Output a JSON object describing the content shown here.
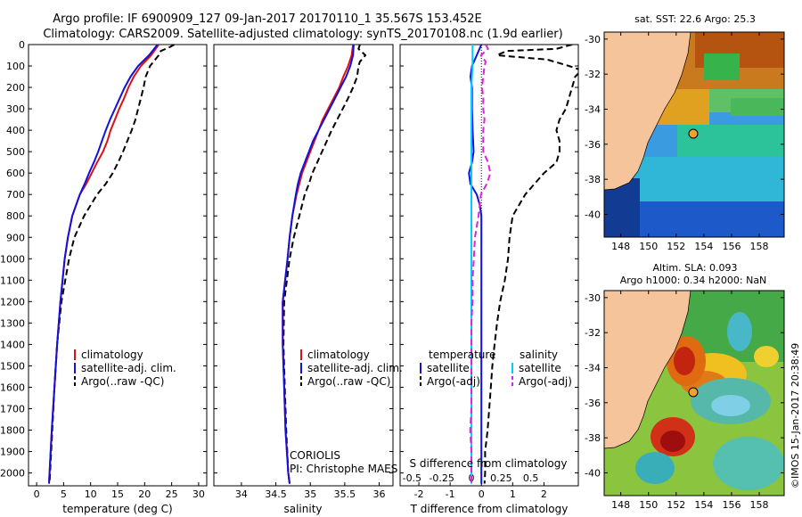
{
  "header": {
    "line1": "Argo profile: IF 6900909_127 09-Jan-2017 20170110_1 35.567S 153.452E",
    "line2": "Climatology: CARS2009. Satellite-adjusted climatology: synTS_20170108.nc (1.9d earlier)"
  },
  "depth_ticks": [
    "0",
    "100",
    "200",
    "300",
    "400",
    "500",
    "600",
    "700",
    "800",
    "900",
    "1000",
    "1100",
    "1200",
    "1300",
    "1400",
    "1500",
    "1600",
    "1700",
    "1800",
    "1900",
    "2000"
  ],
  "chart_data": [
    {
      "type": "line",
      "id": "temperature",
      "xlabel": "temperature (deg C)",
      "ylabel": "",
      "xlim": [
        -1.5,
        31.5
      ],
      "ylim": [
        2060,
        0
      ],
      "xticks": [
        "0",
        "5",
        "10",
        "15",
        "20",
        "25",
        "30"
      ],
      "legend": [
        "climatology",
        "satellite-adj. clim.",
        "Argo(..raw -QC)"
      ],
      "series": [
        {
          "name": "climatology",
          "color": "#dd1111",
          "dash": "solid",
          "depth": [
            0,
            50,
            100,
            150,
            200,
            250,
            300,
            350,
            400,
            450,
            500,
            550,
            600,
            650,
            700,
            800,
            900,
            1000,
            1200,
            1400,
            1600,
            1800,
            2000,
            2050
          ],
          "values": [
            22.6,
            21.2,
            19.3,
            18.0,
            17.0,
            16.2,
            15.3,
            14.5,
            13.7,
            13.1,
            12.3,
            11.2,
            10.2,
            9.2,
            8.0,
            6.6,
            5.8,
            5.2,
            4.4,
            3.8,
            3.3,
            2.8,
            2.4,
            2.3
          ]
        },
        {
          "name": "satellite-adj. clim.",
          "color": "#1111dd",
          "dash": "solid",
          "depth": [
            0,
            50,
            100,
            150,
            200,
            250,
            300,
            350,
            400,
            450,
            500,
            550,
            600,
            650,
            700,
            800,
            900,
            1000,
            1200,
            1400,
            1600,
            1800,
            2000,
            2050
          ],
          "values": [
            22.4,
            20.8,
            18.8,
            17.4,
            16.3,
            15.4,
            14.5,
            13.6,
            12.8,
            12.1,
            11.4,
            10.6,
            9.7,
            8.9,
            8.0,
            6.6,
            5.8,
            5.2,
            4.4,
            3.8,
            3.3,
            2.8,
            2.4,
            2.3
          ]
        },
        {
          "name": "Argo(..raw -QC)",
          "color": "#000000",
          "dash": "dashed",
          "depth": [
            0,
            10,
            30,
            50,
            100,
            150,
            200,
            250,
            300,
            350,
            400,
            450,
            500,
            550,
            600,
            650,
            700,
            800,
            900,
            1000,
            1200,
            1400,
            1600,
            1800,
            2000,
            2050
          ],
          "values": [
            25.5,
            24.8,
            23.0,
            22.6,
            21.0,
            20.2,
            19.8,
            19.3,
            18.8,
            18.3,
            17.6,
            16.8,
            16.0,
            15.1,
            14.1,
            12.8,
            11.2,
            8.8,
            7.0,
            6.0,
            4.6,
            3.8,
            3.3,
            2.9,
            2.5,
            2.4
          ]
        }
      ]
    },
    {
      "type": "line",
      "id": "salinity",
      "xlabel": "salinity",
      "ylabel": "",
      "xlim": [
        33.6,
        36.2
      ],
      "ylim": [
        2060,
        0
      ],
      "xticks": [
        "34",
        "34.5",
        "35",
        "35.5",
        "36"
      ],
      "legend": [
        "climatology",
        "satellite-adj. clim.",
        "Argo(..raw -QC)"
      ],
      "annotation": [
        "CORIOLIS",
        "PI: Christophe MAES"
      ],
      "series": [
        {
          "name": "climatology",
          "color": "#dd1111",
          "dash": "solid",
          "depth": [
            0,
            50,
            100,
            150,
            200,
            250,
            300,
            350,
            400,
            450,
            500,
            550,
            600,
            650,
            700,
            800,
            900,
            1000,
            1200,
            1400,
            1600,
            1800,
            2000,
            2050
          ],
          "values": [
            35.62,
            35.6,
            35.55,
            35.48,
            35.42,
            35.34,
            35.26,
            35.18,
            35.12,
            35.06,
            35.0,
            34.94,
            34.88,
            34.84,
            34.8,
            34.74,
            34.7,
            34.67,
            34.6,
            34.6,
            34.62,
            34.64,
            34.68,
            34.7
          ]
        },
        {
          "name": "satellite-adj. clim.",
          "color": "#1111dd",
          "dash": "solid",
          "depth": [
            0,
            50,
            100,
            150,
            200,
            250,
            300,
            350,
            400,
            450,
            500,
            550,
            600,
            650,
            700,
            800,
            900,
            1000,
            1200,
            1400,
            1600,
            1800,
            2000,
            2050
          ],
          "values": [
            35.63,
            35.62,
            35.58,
            35.52,
            35.44,
            35.36,
            35.28,
            35.2,
            35.12,
            35.04,
            34.98,
            34.92,
            34.86,
            34.82,
            34.79,
            34.74,
            34.7,
            34.67,
            34.6,
            34.6,
            34.62,
            34.64,
            34.68,
            34.7
          ]
        },
        {
          "name": "Argo(..raw -QC)",
          "color": "#000000",
          "dash": "dashed",
          "depth": [
            0,
            20,
            50,
            80,
            100,
            150,
            200,
            250,
            300,
            350,
            400,
            450,
            500,
            550,
            600,
            650,
            700,
            800,
            900,
            1000,
            1200,
            1400,
            1600,
            1800,
            2000,
            2050
          ],
          "values": [
            35.72,
            35.7,
            35.8,
            35.72,
            35.7,
            35.68,
            35.62,
            35.55,
            35.47,
            35.39,
            35.31,
            35.24,
            35.17,
            35.1,
            35.03,
            34.98,
            34.92,
            34.84,
            34.76,
            34.7,
            34.62,
            34.61,
            34.63,
            34.65,
            34.68,
            34.7
          ]
        }
      ]
    },
    {
      "type": "line",
      "id": "difference",
      "xlabel": "T difference from climatology",
      "xlabel2": "S difference from climatology",
      "xlim": [
        -2.6,
        3.1
      ],
      "s_xlim": [
        -0.6,
        0.9
      ],
      "ylim": [
        2060,
        0
      ],
      "xticks": [
        "-2",
        "-1",
        "0",
        "1",
        "2"
      ],
      "s_xticks": [
        "-0.5",
        "-0.25",
        "0",
        "0.25",
        "0.5"
      ],
      "legend_headers": [
        "temperature",
        "salinity"
      ],
      "legend": [
        "satellite",
        "Argo(-adj)",
        "satellite",
        "Argo(-adj)"
      ],
      "series": [
        {
          "name": "temperature satellite",
          "color": "#1111dd",
          "dash": "solid",
          "axis": "T",
          "depth": [
            0,
            50,
            100,
            150,
            200,
            300,
            400,
            500,
            550,
            600,
            650,
            700,
            750,
            800,
            1000,
            1500,
            2000,
            2050
          ],
          "values": [
            0.0,
            -0.15,
            -0.3,
            -0.35,
            -0.3,
            -0.3,
            -0.28,
            -0.25,
            -0.3,
            -0.4,
            -0.35,
            -0.15,
            -0.05,
            0.0,
            0.0,
            0.0,
            0.0,
            0.0
          ]
        },
        {
          "name": "salinity satellite",
          "color": "#00ccff",
          "dash": "solid",
          "axis": "S",
          "depth": [
            0,
            100,
            200,
            400,
            600,
            800,
            1000,
            1200,
            1500,
            2050
          ],
          "values": [
            0.01,
            0.01,
            0.0,
            0.0,
            0.0,
            0.0,
            0.0,
            0.0,
            0.0,
            0.0
          ]
        },
        {
          "name": "salinity Argo(-adj)",
          "color": "#dd22dd",
          "dash": "dashed",
          "axis": "S",
          "depth": [
            0,
            20,
            50,
            80,
            100,
            150,
            200,
            250,
            300,
            350,
            400,
            450,
            500,
            550,
            600,
            650,
            700,
            800,
            900,
            1000,
            1100,
            1200,
            1300,
            1400,
            1500,
            1600,
            1700,
            1800,
            1900,
            2000,
            2050
          ],
          "values": [
            0.12,
            0.14,
            0.08,
            0.12,
            0.11,
            0.1,
            0.09,
            0.1,
            0.1,
            0.11,
            0.1,
            0.1,
            0.1,
            0.14,
            0.16,
            0.13,
            0.08,
            0.06,
            0.03,
            0.02,
            0.01,
            0.01,
            0.0,
            0.0,
            0.0,
            0.0,
            0.0,
            -0.01,
            0.0,
            0.0,
            0.0
          ]
        },
        {
          "name": "temperature Argo(-adj)",
          "color": "#000000",
          "dash": "dashed",
          "axis": "T",
          "depth": [
            0,
            20,
            30,
            50,
            70,
            100,
            120,
            150,
            200,
            250,
            300,
            350,
            400,
            450,
            500,
            550,
            600,
            650,
            700,
            800,
            900,
            1000,
            1100,
            1200,
            1300,
            1400,
            1500,
            1600,
            1700,
            1800,
            1900,
            2000,
            2050
          ],
          "values": [
            2.9,
            2.4,
            0.8,
            0.5,
            2.1,
            2.8,
            3.2,
            3.0,
            2.9,
            2.8,
            2.7,
            2.5,
            2.4,
            2.5,
            2.5,
            2.4,
            2.0,
            1.7,
            1.4,
            1.0,
            0.9,
            0.85,
            0.75,
            0.6,
            0.5,
            0.42,
            0.35,
            0.3,
            0.25,
            0.2,
            0.12,
            0.12,
            0.1
          ]
        }
      ]
    }
  ],
  "maps": {
    "sst": {
      "title": "sat. SST: 22.6 Argo: 25.3",
      "subtitle": "",
      "lat_ticks": [
        "-30",
        "-32",
        "-34",
        "-36",
        "-38",
        "-40"
      ],
      "lon_ticks": [
        "148",
        "150",
        "152",
        "154",
        "156",
        "158"
      ],
      "argo_marker": {
        "lat": -35.567,
        "lon": 153.452
      }
    },
    "sla": {
      "title": "Altim. SLA: 0.093",
      "subtitle": "Argo h1000: 0.34 h2000: NaN",
      "lat_ticks": [
        "-30",
        "-32",
        "-34",
        "-36",
        "-38",
        "-40"
      ],
      "lon_ticks": [
        "148",
        "150",
        "152",
        "154",
        "156",
        "158"
      ],
      "argo_marker": {
        "lat": -35.567,
        "lon": 153.452
      }
    }
  },
  "footer": {
    "timestamp": "©IMOS 15-Jan-2017 20:38:49"
  },
  "colors": {
    "land": "#f6c49b",
    "climatology": "#dd1111",
    "satellite_adj": "#1111dd",
    "argo": "#000000",
    "salinity_satellite": "#00ccff",
    "salinity_argo": "#dd22dd"
  }
}
